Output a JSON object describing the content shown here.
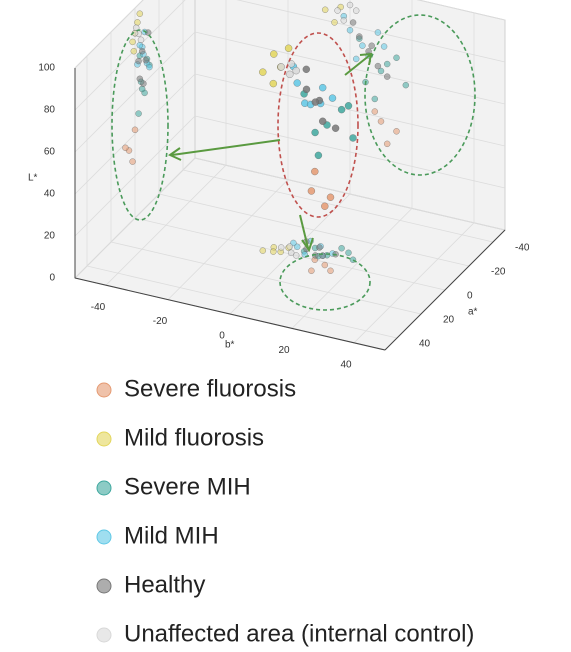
{
  "chart_data": {
    "type": "scatter3d",
    "xlabel": "b*",
    "ylabel": "a*",
    "zlabel": "L*",
    "xlim": [
      -50,
      50
    ],
    "ylim": [
      -50,
      50
    ],
    "zlim": [
      0,
      100
    ],
    "xticks": [
      -40,
      -20,
      0,
      20,
      40
    ],
    "yticks": [
      -40,
      -20,
      0,
      20,
      40
    ],
    "zticks": [
      0,
      20,
      40,
      60,
      80,
      100
    ],
    "grid": true,
    "series": [
      {
        "name": "Severe fluorosis",
        "color": "#e59a72",
        "x": [
          12,
          15,
          8,
          10
        ],
        "y": [
          2,
          5,
          0,
          8
        ],
        "z": [
          28,
          35,
          42,
          38
        ]
      },
      {
        "name": "Mild fluorosis",
        "color": "#e3d65c",
        "x": [
          -6,
          -3,
          -8,
          -2,
          -5
        ],
        "y": [
          -2,
          0,
          2,
          -4,
          1
        ],
        "z": [
          92,
          88,
          85,
          95,
          80
        ]
      },
      {
        "name": "Severe MIH",
        "color": "#3fa89f",
        "x": [
          5,
          10,
          15,
          8,
          12,
          18,
          3
        ],
        "y": [
          -8,
          -5,
          -10,
          -3,
          -12,
          -6,
          -4
        ],
        "z": [
          55,
          62,
          70,
          48,
          66,
          58,
          75
        ]
      },
      {
        "name": "Mild MIH",
        "color": "#5fc8e6",
        "x": [
          0,
          4,
          -2,
          6,
          9,
          2,
          11
        ],
        "y": [
          -6,
          -2,
          -8,
          -10,
          -4,
          -12,
          -7
        ],
        "z": [
          78,
          72,
          84,
          68,
          80,
          65,
          74
        ]
      },
      {
        "name": "Healthy",
        "color": "#777777",
        "x": [
          6,
          3,
          9,
          1,
          12,
          7
        ],
        "y": [
          -9,
          -6,
          -4,
          -11,
          -7,
          -3
        ],
        "z": [
          70,
          76,
          64,
          82,
          60,
          73
        ]
      },
      {
        "name": "Unaffected area (internal control)",
        "color": "#d8d8d8",
        "x": [
          -4,
          0,
          -2,
          2
        ],
        "y": [
          -3,
          -1,
          -5,
          0
        ],
        "z": [
          86,
          90,
          82,
          88
        ]
      }
    ]
  }
}
